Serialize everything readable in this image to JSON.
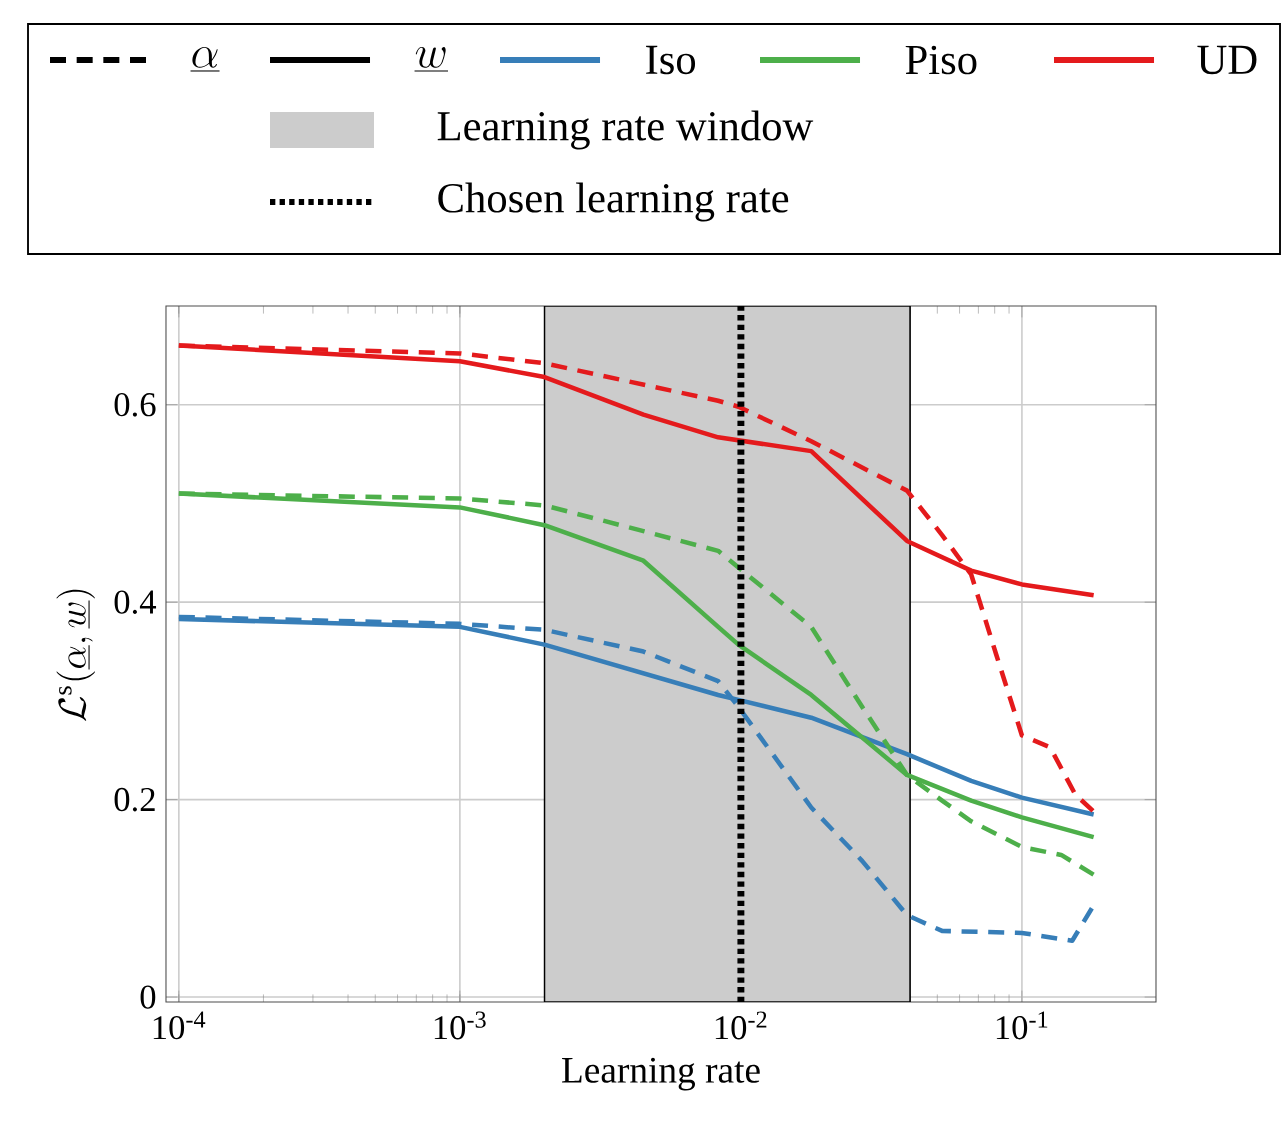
{
  "chart_data": {
    "type": "line",
    "xlabel": "Learning rate",
    "ylabel": "\\mathcal{L}^{\\mathrm{s}}(\\underline{\\alpha},\\underline{w})",
    "annotations": [
      "\\underline{\\alpha}",
      "\\underline{w}"
    ],
    "log": "x",
    "grid": true,
    "legend": "top",
    "xlim": [
      9e-05,
      0.3
    ],
    "ylim": [
      -0.005,
      0.7
    ],
    "xticks": [
      {
        "value": 0.0001,
        "label": "10$^{-4}$"
      },
      {
        "value": 0.001,
        "label": "10$^{-3}$"
      },
      {
        "value": 0.01,
        "label": "10$^{-2}$"
      },
      {
        "value": 0.1,
        "label": "10$^{-1}$"
      }
    ],
    "yticks": [
      0,
      0.2,
      0.4,
      0.6
    ],
    "bands": [
      {
        "axis": "x",
        "from": 0.002,
        "to": 0.04,
        "label": "Learning rate window",
        "color": "#cccccc"
      }
    ],
    "ref_lines": [
      {
        "axis": "x",
        "value": 0.01,
        "label": "Chosen learning rate",
        "color": "#000000",
        "line_style": "dotted"
      }
    ],
    "series": [
      {
        "color": "#377eb8",
        "line_style": "dashed",
        "x": [
          0.0001,
          0.001,
          0.002,
          0.0045,
          0.0083,
          0.0098,
          0.0178,
          0.027,
          0.039,
          0.052,
          0.1,
          0.151,
          0.18
        ],
        "values": [
          0.385,
          0.378,
          0.372,
          0.35,
          0.32,
          0.294,
          0.192,
          0.138,
          0.083,
          0.067,
          0.065,
          0.057,
          0.093
        ]
      },
      {
        "name": "Iso",
        "color": "#377eb8",
        "line_style": "solid",
        "x": [
          0.0001,
          0.001,
          0.002,
          0.0083,
          0.0098,
          0.0178,
          0.039,
          0.066,
          0.1,
          0.18
        ],
        "values": [
          0.383,
          0.375,
          0.357,
          0.306,
          0.301,
          0.283,
          0.246,
          0.219,
          0.202,
          0.185
        ]
      },
      {
        "color": "#4daf4a",
        "line_style": "dashed",
        "x": [
          0.0001,
          0.001,
          0.002,
          0.0045,
          0.0083,
          0.0098,
          0.0178,
          0.027,
          0.039,
          0.052,
          0.066,
          0.1,
          0.138,
          0.18
        ],
        "values": [
          0.51,
          0.505,
          0.498,
          0.472,
          0.452,
          0.435,
          0.375,
          0.294,
          0.225,
          0.199,
          0.178,
          0.152,
          0.144,
          0.124
        ]
      },
      {
        "name": "Piso",
        "color": "#4daf4a",
        "line_style": "solid",
        "x": [
          0.0001,
          0.001,
          0.002,
          0.0045,
          0.0083,
          0.0098,
          0.0178,
          0.039,
          0.066,
          0.1,
          0.18
        ],
        "values": [
          0.51,
          0.496,
          0.478,
          0.442,
          0.375,
          0.357,
          0.306,
          0.225,
          0.199,
          0.182,
          0.162
        ]
      },
      {
        "color": "#e41a1c",
        "line_style": "dashed",
        "x": [
          0.0001,
          0.001,
          0.002,
          0.0083,
          0.0098,
          0.0178,
          0.039,
          0.052,
          0.066,
          0.081,
          0.1,
          0.126,
          0.155,
          0.18
        ],
        "values": [
          0.66,
          0.652,
          0.642,
          0.604,
          0.598,
          0.563,
          0.513,
          0.468,
          0.428,
          0.347,
          0.265,
          0.253,
          0.205,
          0.188
        ]
      },
      {
        "name": "UD",
        "color": "#e41a1c",
        "line_style": "solid",
        "x": [
          0.0001,
          0.001,
          0.002,
          0.0045,
          0.0083,
          0.0178,
          0.039,
          0.066,
          0.1,
          0.18
        ],
        "values": [
          0.66,
          0.644,
          0.628,
          0.59,
          0.567,
          0.553,
          0.462,
          0.432,
          0.418,
          0.407
        ]
      }
    ]
  }
}
